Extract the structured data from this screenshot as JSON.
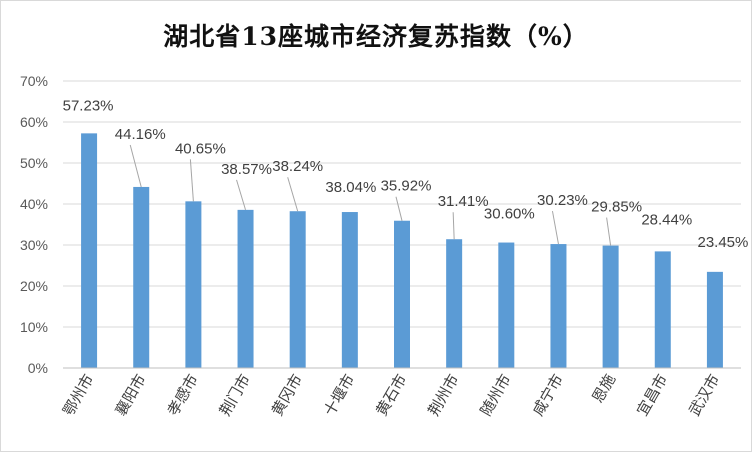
{
  "chart_data": {
    "type": "bar",
    "title": "湖北省13座城市经济复苏指数（%）",
    "categories": [
      "鄂州市",
      "襄阳市",
      "孝感市",
      "荆门市",
      "黄冈市",
      "十堰市",
      "黄石市",
      "荆州市",
      "随州市",
      "咸宁市",
      "恩施",
      "宜昌市",
      "武汉市"
    ],
    "values": [
      57.23,
      44.16,
      40.65,
      38.57,
      38.24,
      38.04,
      35.92,
      31.41,
      30.6,
      30.23,
      29.85,
      28.44,
      23.45
    ],
    "data_labels": [
      "57.23%",
      "44.16%",
      "40.65%",
      "38.57%",
      "38.24%",
      "38.04%",
      "35.92%",
      "31.41%",
      "30.60%",
      "30.23%",
      "29.85%",
      "28.44%",
      "23.45%"
    ],
    "y_ticks": [
      "0%",
      "10%",
      "20%",
      "30%",
      "40%",
      "50%",
      "60%",
      "70%"
    ],
    "ylim": [
      0,
      70
    ],
    "xlabel": "",
    "ylabel": "",
    "grid": true,
    "legend": "none",
    "bar_color": "#5b9bd5",
    "grid_color": "#d9d9d9",
    "leader_line_color": "#a6a6a6"
  }
}
